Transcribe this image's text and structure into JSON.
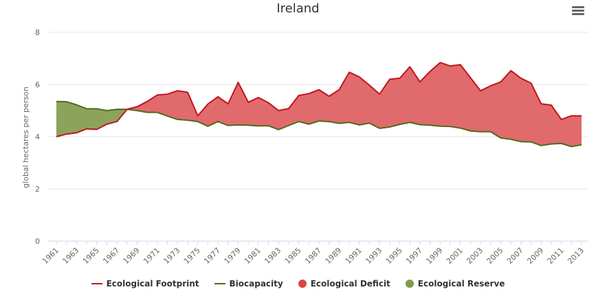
{
  "chart_data": {
    "type": "area",
    "title": "Ireland",
    "ylabel": "global hectares per person",
    "xlabel": "",
    "ylim": [
      0,
      8
    ],
    "yticks": [
      0,
      2,
      4,
      6,
      8
    ],
    "grid": true,
    "legend_position": "bottom",
    "x": [
      1961,
      1962,
      1963,
      1964,
      1965,
      1966,
      1967,
      1968,
      1969,
      1970,
      1971,
      1972,
      1973,
      1974,
      1975,
      1976,
      1977,
      1978,
      1979,
      1980,
      1981,
      1982,
      1983,
      1984,
      1985,
      1986,
      1987,
      1988,
      1989,
      1990,
      1991,
      1992,
      1993,
      1994,
      1995,
      1996,
      1997,
      1998,
      1999,
      2000,
      2001,
      2002,
      2003,
      2004,
      2005,
      2006,
      2007,
      2008,
      2009,
      2010,
      2011,
      2012,
      2013
    ],
    "xtick_labels": [
      "1961",
      "1963",
      "1965",
      "1967",
      "1969",
      "1971",
      "1973",
      "1975",
      "1977",
      "1979",
      "1981",
      "1983",
      "1985",
      "1987",
      "1989",
      "1991",
      "1993",
      "1995",
      "1997",
      "1999",
      "2001",
      "2003",
      "2005",
      "2007",
      "2009",
      "2011",
      "2013"
    ],
    "series": [
      {
        "name": "Ecological Footprint",
        "color": "#c0141a",
        "values": [
          4.0,
          4.1,
          4.15,
          4.3,
          4.28,
          4.48,
          4.58,
          5.05,
          5.15,
          5.35,
          5.6,
          5.63,
          5.76,
          5.7,
          4.8,
          5.25,
          5.53,
          5.26,
          6.08,
          5.32,
          5.5,
          5.3,
          5.0,
          5.08,
          5.58,
          5.65,
          5.8,
          5.55,
          5.8,
          6.47,
          6.29,
          5.97,
          5.63,
          6.2,
          6.24,
          6.68,
          6.1,
          6.5,
          6.84,
          6.71,
          6.76,
          6.26,
          5.76,
          5.95,
          6.1,
          6.53,
          6.24,
          6.05,
          5.26,
          5.21,
          4.66,
          4.8,
          4.8
        ]
      },
      {
        "name": "Biocapacity",
        "color": "#4f6b1c",
        "values": [
          5.35,
          5.34,
          5.22,
          5.07,
          5.07,
          5.0,
          5.05,
          5.05,
          5.0,
          4.93,
          4.93,
          4.79,
          4.66,
          4.63,
          4.58,
          4.4,
          4.58,
          4.43,
          4.45,
          4.44,
          4.41,
          4.42,
          4.27,
          4.43,
          4.58,
          4.48,
          4.6,
          4.58,
          4.51,
          4.55,
          4.45,
          4.52,
          4.32,
          4.37,
          4.47,
          4.55,
          4.46,
          4.44,
          4.4,
          4.39,
          4.33,
          4.22,
          4.19,
          4.19,
          3.95,
          3.9,
          3.81,
          3.8,
          3.66,
          3.72,
          3.74,
          3.62,
          3.69
        ]
      }
    ],
    "areas": [
      {
        "name": "Ecological Deficit",
        "color": "#e06a6c"
      },
      {
        "name": "Ecological Reserve",
        "color": "#8ca35c"
      }
    ]
  },
  "menu_icon": "hamburger-menu-icon"
}
